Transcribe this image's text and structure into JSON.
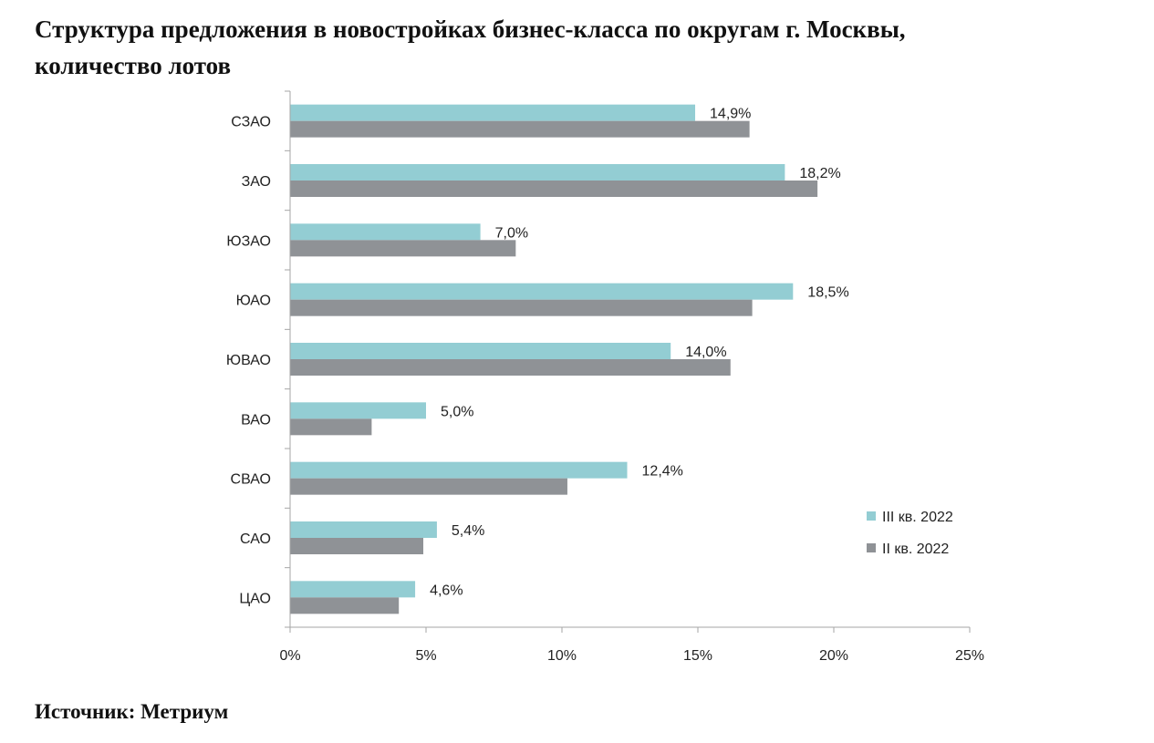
{
  "title": {
    "line1": "Структура предложения в новостройках бизнес-класса по округам г. Москвы,",
    "line2": "количество лотов"
  },
  "source": "Источник: Метриум",
  "chart_data": {
    "type": "bar",
    "orientation": "horizontal",
    "categories": [
      "СЗАО",
      "ЗАО",
      "ЮЗАО",
      "ЮАО",
      "ЮВАО",
      "ВАО",
      "СВАО",
      "САО",
      "ЦАО"
    ],
    "series": [
      {
        "name": "III кв. 2022",
        "color": "#93cdd3",
        "values": [
          14.9,
          18.2,
          7.0,
          18.5,
          14.0,
          5.0,
          12.4,
          5.4,
          4.6
        ],
        "data_labels": [
          "14,9%",
          "18,2%",
          "7,0%",
          "18,5%",
          "14,0%",
          "5,0%",
          "12,4%",
          "5,4%",
          "4,6%"
        ]
      },
      {
        "name": "II кв. 2022",
        "color": "#8f9296",
        "values": [
          16.9,
          19.4,
          8.3,
          17.0,
          16.2,
          3.0,
          10.2,
          4.9,
          4.0
        ]
      }
    ],
    "xlim": [
      0,
      25
    ],
    "xticks": [
      0,
      5,
      10,
      15,
      20,
      25
    ],
    "xtick_labels": [
      "0%",
      "5%",
      "10%",
      "15%",
      "20%",
      "25%"
    ],
    "grid": false,
    "legend_position": "right"
  }
}
